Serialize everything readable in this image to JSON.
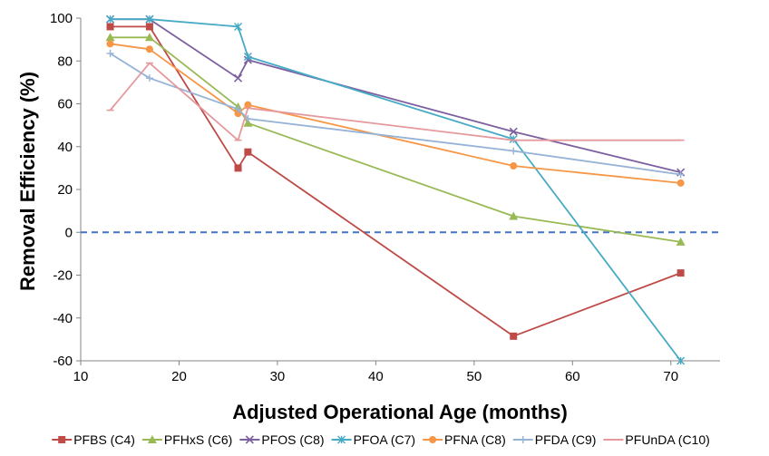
{
  "chart_data": {
    "type": "line",
    "xlabel": "Adjusted Operational Age (months)",
    "ylabel": "Removal Efficiency (%)",
    "xlim": [
      10,
      75
    ],
    "ylim": [
      -60,
      100
    ],
    "xticks": [
      10,
      20,
      30,
      40,
      50,
      60,
      70
    ],
    "yticks": [
      -60,
      -40,
      -20,
      0,
      20,
      40,
      60,
      80,
      100
    ],
    "x_tick_labels": [
      "10",
      "20",
      "30",
      "40",
      "50",
      "60",
      "70"
    ],
    "y_tick_labels": [
      "-60",
      "-40",
      "-20",
      "0",
      "20",
      "40",
      "60",
      "80",
      "100"
    ],
    "grid": false,
    "legend_position": "bottom",
    "reference_line": {
      "y": 0,
      "style": "dashed",
      "color": "#4472c4"
    },
    "series": [
      {
        "name": "PFBS (C4)",
        "color": "#be4b48",
        "marker": "square",
        "x": [
          13,
          17,
          26,
          27,
          54,
          71
        ],
        "y": [
          96,
          96,
          30,
          37.5,
          -48.5,
          -19
        ]
      },
      {
        "name": "PFHxS (C6)",
        "color": "#98b954",
        "marker": "triangle",
        "x": [
          13,
          17,
          26,
          27,
          54,
          71
        ],
        "y": [
          91,
          91,
          58.5,
          51,
          7.5,
          -4.5
        ]
      },
      {
        "name": "PFOS (C8)",
        "color": "#7d60a0",
        "marker": "x",
        "x": [
          13,
          17,
          26,
          27,
          54,
          71
        ],
        "y": [
          99.5,
          99.5,
          72,
          80.5,
          47,
          28
        ]
      },
      {
        "name": "PFOA (C7)",
        "color": "#46aac5",
        "marker": "star",
        "x": [
          13,
          17,
          26,
          27,
          54,
          71
        ],
        "y": [
          99.5,
          99.5,
          96,
          82,
          43.5,
          -60
        ]
      },
      {
        "name": "PFNA (C8)",
        "color": "#f79646",
        "marker": "circle",
        "x": [
          13,
          17,
          26,
          27,
          54,
          71
        ],
        "y": [
          88,
          85.5,
          55.5,
          59.5,
          31,
          23
        ]
      },
      {
        "name": "PFDA (C9)",
        "color": "#95b3d7",
        "marker": "plus",
        "x": [
          13,
          17,
          26,
          27,
          54,
          71
        ],
        "y": [
          83.5,
          72,
          57.5,
          53,
          38,
          27
        ]
      },
      {
        "name": "PFUnDA (C10)",
        "color": "#e6999c",
        "marker": "dash",
        "x": [
          13,
          17,
          26,
          27,
          54,
          71
        ],
        "y": [
          57,
          79,
          43,
          58,
          43,
          43
        ]
      }
    ]
  }
}
